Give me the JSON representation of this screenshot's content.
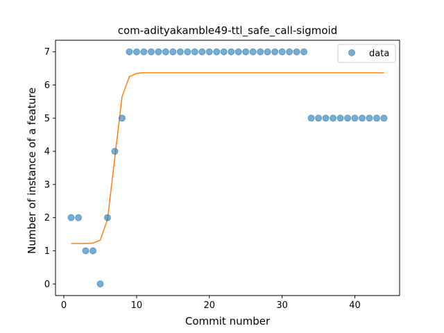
{
  "chart_data": {
    "type": "scatter",
    "title": "com-adityakamble49-ttl_safe_call-sigmoid",
    "xlabel": "Commit number",
    "ylabel": "Number of instance of a feature",
    "xlim": [
      -1.15,
      46.15
    ],
    "ylim": [
      -0.35,
      7.35
    ],
    "xticks": [
      0,
      10,
      20,
      30,
      40
    ],
    "yticks": [
      0,
      1,
      2,
      3,
      4,
      5,
      6,
      7
    ],
    "legend_position": "upper-right",
    "grid": false,
    "series": [
      {
        "name": "data",
        "kind": "scatter",
        "color": "#1f77b4",
        "x": [
          1,
          2,
          3,
          4,
          5,
          6,
          7,
          8,
          9,
          10,
          11,
          12,
          13,
          14,
          15,
          16,
          17,
          18,
          19,
          20,
          21,
          22,
          23,
          24,
          25,
          26,
          27,
          28,
          29,
          30,
          31,
          32,
          33,
          34,
          35,
          36,
          37,
          38,
          39,
          40,
          41,
          42,
          43,
          44
        ],
        "y": [
          2,
          2,
          1,
          1,
          0,
          2,
          4,
          5,
          7,
          7,
          7,
          7,
          7,
          7,
          7,
          7,
          7,
          7,
          7,
          7,
          7,
          7,
          7,
          7,
          7,
          7,
          7,
          7,
          7,
          7,
          7,
          7,
          7,
          5,
          5,
          5,
          5,
          5,
          5,
          5,
          5,
          5,
          5,
          5
        ]
      },
      {
        "kind": "line",
        "color": "#ff7f0e",
        "x": [
          1,
          2,
          3,
          4,
          5,
          6,
          7,
          8,
          9,
          10,
          11,
          12,
          13,
          14,
          15,
          16,
          17,
          18,
          19,
          20,
          21,
          22,
          23,
          24,
          25,
          26,
          27,
          28,
          29,
          30,
          31,
          32,
          33,
          34,
          35,
          36,
          37,
          38,
          39,
          40,
          41,
          42,
          43,
          44
        ],
        "y": [
          1.22,
          1.22,
          1.22,
          1.23,
          1.32,
          1.95,
          3.8,
          5.65,
          6.25,
          6.35,
          6.37,
          6.37,
          6.37,
          6.37,
          6.37,
          6.37,
          6.37,
          6.37,
          6.37,
          6.37,
          6.37,
          6.37,
          6.37,
          6.37,
          6.37,
          6.37,
          6.37,
          6.37,
          6.37,
          6.37,
          6.37,
          6.37,
          6.37,
          6.37,
          6.37,
          6.37,
          6.37,
          6.37,
          6.37,
          6.37,
          6.37,
          6.37,
          6.37,
          6.37
        ]
      }
    ]
  }
}
